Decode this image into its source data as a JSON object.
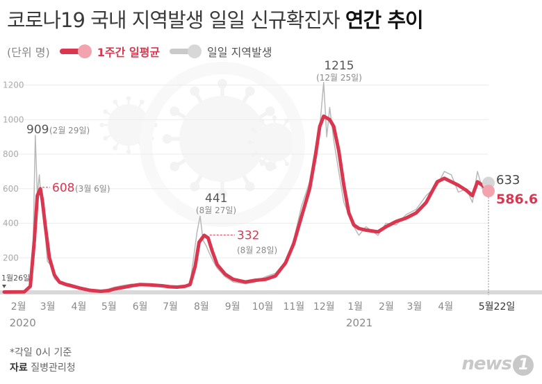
{
  "title": {
    "main": "코로나19 국내 지역발생 일일 신규확진자 ",
    "bold": "연간 추이"
  },
  "legend": {
    "unit": "(단위 명)",
    "weekly_label": "1주간 일평균",
    "daily_label": "일일 지역발생"
  },
  "colors": {
    "weekly": "#d9364f",
    "daily": "#b8b8b8",
    "axis": "#cfcfcf"
  },
  "chart_data": {
    "type": "line",
    "y_ticks": [
      "0",
      "200",
      "400",
      "600",
      "800",
      "1000",
      "1200"
    ],
    "ylim": [
      0,
      1300
    ],
    "x_ticks": [
      {
        "label": "2월",
        "day": 6
      },
      {
        "label": "3월",
        "day": 35
      },
      {
        "label": "4월",
        "day": 66
      },
      {
        "label": "5월",
        "day": 96
      },
      {
        "label": "6월",
        "day": 127
      },
      {
        "label": "7월",
        "day": 157
      },
      {
        "label": "8월",
        "day": 188
      },
      {
        "label": "9월",
        "day": 219
      },
      {
        "label": "10월",
        "day": 249
      },
      {
        "label": "11월",
        "day": 280
      },
      {
        "label": "12월",
        "day": 310
      },
      {
        "label": "1월",
        "day": 341
      },
      {
        "label": "2월",
        "day": 372
      },
      {
        "label": "3월",
        "day": 400
      },
      {
        "label": "4월",
        "day": 431
      },
      {
        "label": "5월22일",
        "day": 482
      }
    ],
    "year_labels": [
      {
        "label": "2020",
        "day": 6
      },
      {
        "label": "2021",
        "day": 341
      }
    ],
    "series": [
      {
        "name": "1주간 일평균",
        "points": [
          [
            0,
            2
          ],
          [
            20,
            3
          ],
          [
            26,
            35
          ],
          [
            30,
            300
          ],
          [
            33,
            560
          ],
          [
            36,
            600
          ],
          [
            38,
            530
          ],
          [
            41,
            380
          ],
          [
            45,
            200
          ],
          [
            50,
            100
          ],
          [
            55,
            60
          ],
          [
            62,
            45
          ],
          [
            66,
            40
          ],
          [
            75,
            25
          ],
          [
            85,
            12
          ],
          [
            96,
            6
          ],
          [
            104,
            10
          ],
          [
            110,
            20
          ],
          [
            118,
            28
          ],
          [
            127,
            38
          ],
          [
            135,
            45
          ],
          [
            145,
            43
          ],
          [
            157,
            38
          ],
          [
            165,
            32
          ],
          [
            172,
            30
          ],
          [
            180,
            35
          ],
          [
            185,
            45
          ],
          [
            190,
            150
          ],
          [
            194,
            290
          ],
          [
            199,
            330
          ],
          [
            203,
            315
          ],
          [
            207,
            240
          ],
          [
            212,
            160
          ],
          [
            220,
            105
          ],
          [
            228,
            75
          ],
          [
            240,
            60
          ],
          [
            250,
            70
          ],
          [
            260,
            75
          ],
          [
            270,
            95
          ],
          [
            280,
            170
          ],
          [
            288,
            280
          ],
          [
            296,
            440
          ],
          [
            304,
            600
          ],
          [
            310,
            800
          ],
          [
            314,
            960
          ],
          [
            318,
            1020
          ],
          [
            324,
            1000
          ],
          [
            328,
            960
          ],
          [
            333,
            820
          ],
          [
            338,
            620
          ],
          [
            343,
            460
          ],
          [
            348,
            390
          ],
          [
            353,
            370
          ],
          [
            360,
            360
          ],
          [
            372,
            350
          ],
          [
            380,
            380
          ],
          [
            390,
            410
          ],
          [
            400,
            430
          ],
          [
            410,
            460
          ],
          [
            420,
            520
          ],
          [
            431,
            640
          ],
          [
            438,
            660
          ],
          [
            445,
            640
          ],
          [
            452,
            620
          ],
          [
            460,
            590
          ],
          [
            466,
            560
          ],
          [
            471,
            640
          ],
          [
            476,
            620
          ],
          [
            482,
            586.6
          ]
        ]
      },
      {
        "name": "일일 지역발생",
        "points": [
          [
            0,
            1
          ],
          [
            20,
            2
          ],
          [
            26,
            30
          ],
          [
            29,
            320
          ],
          [
            31,
            909
          ],
          [
            33,
            560
          ],
          [
            35,
            680
          ],
          [
            37,
            520
          ],
          [
            40,
            400
          ],
          [
            43,
            180
          ],
          [
            46,
            160
          ],
          [
            50,
            80
          ],
          [
            55,
            50
          ],
          [
            60,
            40
          ],
          [
            66,
            30
          ],
          [
            75,
            20
          ],
          [
            85,
            10
          ],
          [
            96,
            5
          ],
          [
            104,
            20
          ],
          [
            110,
            30
          ],
          [
            118,
            40
          ],
          [
            127,
            48
          ],
          [
            135,
            40
          ],
          [
            145,
            50
          ],
          [
            157,
            35
          ],
          [
            165,
            30
          ],
          [
            172,
            25
          ],
          [
            180,
            30
          ],
          [
            185,
            50
          ],
          [
            188,
            180
          ],
          [
            192,
            350
          ],
          [
            195,
            441
          ],
          [
            198,
            300
          ],
          [
            201,
            270
          ],
          [
            204,
            230
          ],
          [
            208,
            180
          ],
          [
            212,
            140
          ],
          [
            220,
            90
          ],
          [
            228,
            60
          ],
          [
            240,
            50
          ],
          [
            250,
            60
          ],
          [
            260,
            90
          ],
          [
            270,
            110
          ],
          [
            280,
            180
          ],
          [
            288,
            300
          ],
          [
            296,
            500
          ],
          [
            304,
            640
          ],
          [
            310,
            850
          ],
          [
            314,
            950
          ],
          [
            318,
            1215
          ],
          [
            321,
            900
          ],
          [
            324,
            1070
          ],
          [
            328,
            880
          ],
          [
            333,
            700
          ],
          [
            338,
            520
          ],
          [
            343,
            450
          ],
          [
            348,
            380
          ],
          [
            353,
            330
          ],
          [
            360,
            380
          ],
          [
            372,
            330
          ],
          [
            380,
            400
          ],
          [
            390,
            390
          ],
          [
            400,
            450
          ],
          [
            410,
            480
          ],
          [
            420,
            560
          ],
          [
            431,
            620
          ],
          [
            438,
            700
          ],
          [
            445,
            680
          ],
          [
            452,
            580
          ],
          [
            460,
            600
          ],
          [
            466,
            520
          ],
          [
            471,
            700
          ],
          [
            476,
            600
          ],
          [
            482,
            633
          ]
        ]
      }
    ],
    "annotations": [
      {
        "text": "909",
        "sub": "(2월 29일)"
      },
      {
        "text": "608",
        "sub": "(3월 6일)"
      },
      {
        "text": "441",
        "sub": "(8월 27일)"
      },
      {
        "text": "332",
        "sub": "(8월 28일)"
      },
      {
        "text": "1215",
        "sub": "(12월 25일)"
      },
      {
        "text": "633",
        "sub": ""
      },
      {
        "text": "586.6",
        "sub": ""
      },
      {
        "text": "1월26일",
        "sub": ""
      }
    ]
  },
  "footnote": {
    "note": "*각일 0시 기준",
    "source_label": "자료",
    "source": "질병관리청"
  },
  "logo": {
    "text": "news",
    "mark": "1"
  }
}
